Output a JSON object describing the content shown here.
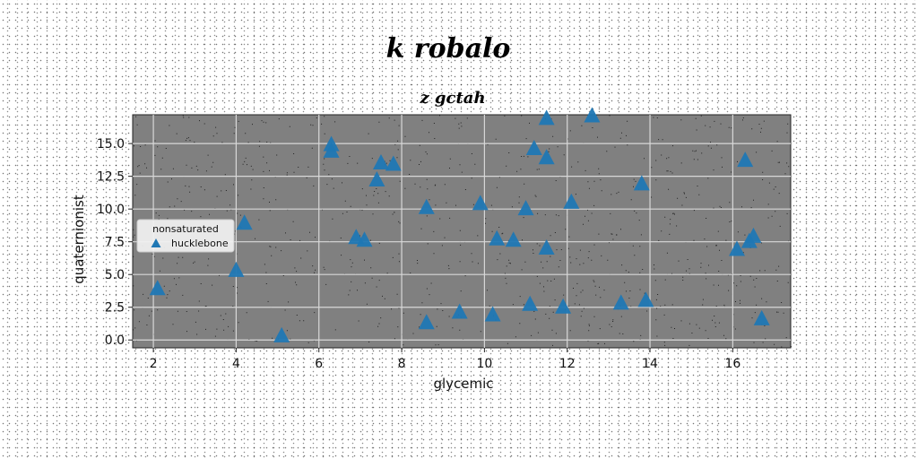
{
  "chart_data": {
    "type": "scatter",
    "title": "k robalo",
    "subtitle": "z gctah",
    "xlabel": "glycemic",
    "ylabel": "quaternionist",
    "xlim": [
      1.5,
      17.4
    ],
    "ylim": [
      -0.6,
      17.2
    ],
    "xticks": [
      "2",
      "4",
      "6",
      "8",
      "10",
      "12",
      "14",
      "16"
    ],
    "yticks": [
      "0.0",
      "2.5",
      "5.0",
      "7.5",
      "10.0",
      "12.5",
      "15.0"
    ],
    "grid": true,
    "legend_title": "nonsaturated",
    "legend_placement": "center-left",
    "series": [
      {
        "name": "hucklebone",
        "marker": "triangle",
        "color": "#1f77b4",
        "points": [
          [
            2.1,
            3.9
          ],
          [
            4.0,
            5.3
          ],
          [
            4.2,
            8.9
          ],
          [
            5.1,
            0.3
          ],
          [
            6.3,
            14.9
          ],
          [
            6.3,
            14.4
          ],
          [
            6.9,
            7.8
          ],
          [
            7.1,
            7.6
          ],
          [
            7.4,
            12.2
          ],
          [
            7.5,
            13.5
          ],
          [
            7.8,
            13.4
          ],
          [
            8.6,
            10.1
          ],
          [
            8.6,
            1.3
          ],
          [
            9.4,
            2.1
          ],
          [
            9.9,
            10.4
          ],
          [
            10.2,
            1.9
          ],
          [
            10.3,
            7.7
          ],
          [
            10.7,
            7.6
          ],
          [
            11.0,
            10.0
          ],
          [
            11.1,
            2.7
          ],
          [
            11.2,
            14.6
          ],
          [
            11.5,
            16.9
          ],
          [
            11.5,
            13.9
          ],
          [
            11.5,
            7.0
          ],
          [
            11.9,
            2.5
          ],
          [
            12.1,
            10.5
          ],
          [
            12.6,
            17.1
          ],
          [
            13.3,
            2.8
          ],
          [
            13.8,
            11.9
          ],
          [
            13.9,
            3.0
          ],
          [
            16.1,
            6.9
          ],
          [
            16.3,
            13.7
          ],
          [
            16.4,
            7.5
          ],
          [
            16.5,
            7.9
          ],
          [
            16.7,
            1.6
          ]
        ]
      }
    ]
  }
}
